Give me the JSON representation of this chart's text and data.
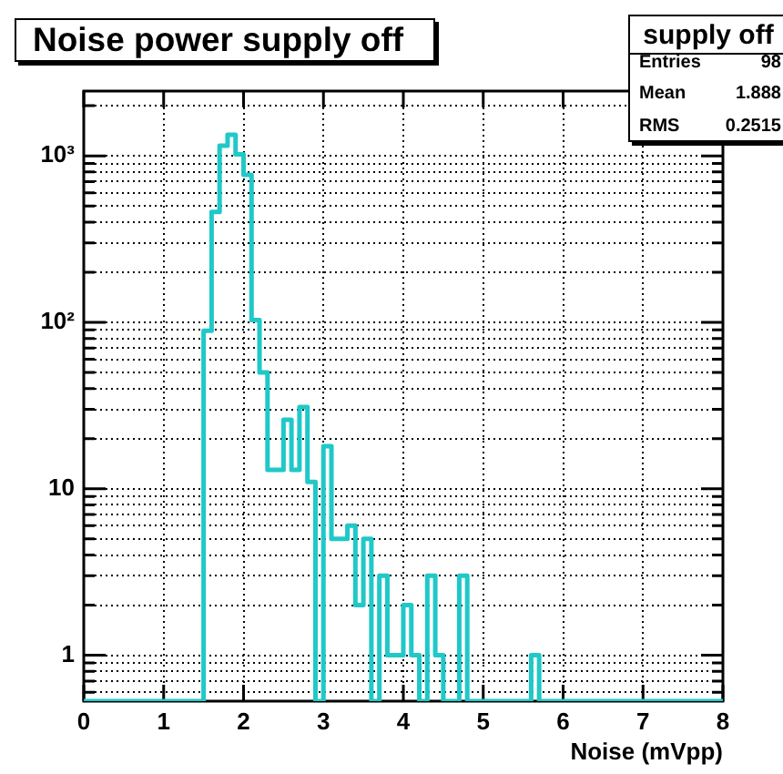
{
  "chart_data": {
    "type": "histogram",
    "title": "Noise power supply off",
    "xlabel": "Noise (mVpp)",
    "annotations": [
      "supply off",
      "Entries",
      "98",
      "Mean",
      "1.888",
      "RMS",
      "0.2515"
    ],
    "bins": [
      0,
      0.1,
      0.2,
      0.3,
      0.4,
      0.5,
      0.6,
      0.7,
      0.8,
      0.9,
      1,
      1.1,
      1.2,
      1.3,
      1.4,
      1.5,
      1.6,
      1.7,
      1.8,
      1.9,
      2,
      2.1,
      2.2,
      2.3,
      2.4,
      2.5,
      2.6,
      2.7,
      2.8,
      2.9,
      3,
      3.1,
      3.2,
      3.3,
      3.4,
      3.5,
      3.6,
      3.7,
      3.8,
      3.9,
      4,
      4.1,
      4.2,
      4.3,
      4.4,
      4.5,
      4.6,
      4.7,
      4.8,
      4.9,
      5,
      5.1,
      5.2,
      5.3,
      5.4,
      5.5,
      5.6,
      5.7,
      5.8,
      5.9,
      6,
      6.1,
      6.2,
      6.3,
      6.4,
      6.5,
      6.6,
      6.7,
      6.8,
      6.9,
      7,
      7.1,
      7.2,
      7.3,
      7.4,
      7.5,
      7.6,
      7.7,
      7.8,
      7.9,
      8
    ],
    "values": [
      null,
      null,
      null,
      null,
      null,
      null,
      null,
      null,
      null,
      null,
      null,
      null,
      null,
      null,
      null,
      89,
      460,
      1150,
      1340,
      1020,
      770,
      103,
      50,
      13,
      13,
      26,
      13,
      31,
      11,
      null,
      18,
      5,
      5,
      6,
      2,
      5,
      null,
      3,
      1,
      1,
      2,
      1,
      null,
      3,
      1,
      null,
      null,
      3,
      null,
      null,
      null,
      null,
      null,
      null,
      null,
      null,
      1,
      null,
      null,
      null,
      null,
      null,
      null,
      null,
      null,
      null,
      null,
      null,
      null,
      null,
      null,
      null,
      null,
      null,
      null,
      null,
      null,
      null,
      null,
      null
    ],
    "color": "#20c8c8",
    "log": true,
    "grid": true,
    "xlim": [
      0,
      8
    ],
    "xticks": [
      0,
      1,
      2,
      3,
      4,
      5,
      6,
      7,
      8
    ],
    "ylim": [
      0.53,
      2450
    ],
    "yticks": [
      {
        "value": 0.6,
        "label": null
      },
      {
        "value": 0.7,
        "label": null
      },
      {
        "value": 0.8,
        "label": null
      },
      {
        "value": 0.9,
        "label": null
      },
      1,
      {
        "value": 2,
        "label": null
      },
      {
        "value": 3,
        "label": null
      },
      {
        "value": 4,
        "label": null
      },
      {
        "value": 5,
        "label": null
      },
      {
        "value": 6,
        "label": null
      },
      {
        "value": 7,
        "label": null
      },
      {
        "value": 8,
        "label": null
      },
      {
        "value": 9,
        "label": null
      },
      10,
      {
        "value": 20,
        "label": null
      },
      {
        "value": 30,
        "label": null
      },
      {
        "value": 40,
        "label": null
      },
      {
        "value": 50,
        "label": null
      },
      {
        "value": 60,
        "label": null
      },
      {
        "value": 70,
        "label": null
      },
      {
        "value": 80,
        "label": null
      },
      {
        "value": 90,
        "label": null
      },
      {
        "value": 100,
        "label": "10²"
      },
      {
        "value": 200,
        "label": null
      },
      {
        "value": 300,
        "label": null
      },
      {
        "value": 400,
        "label": null
      },
      {
        "value": 500,
        "label": null
      },
      {
        "value": 600,
        "label": null
      },
      {
        "value": 700,
        "label": null
      },
      {
        "value": 800,
        "label": null
      },
      {
        "value": 900,
        "label": null
      },
      {
        "value": 1000,
        "label": "10³"
      },
      {
        "value": 2000,
        "label": null
      }
    ]
  }
}
